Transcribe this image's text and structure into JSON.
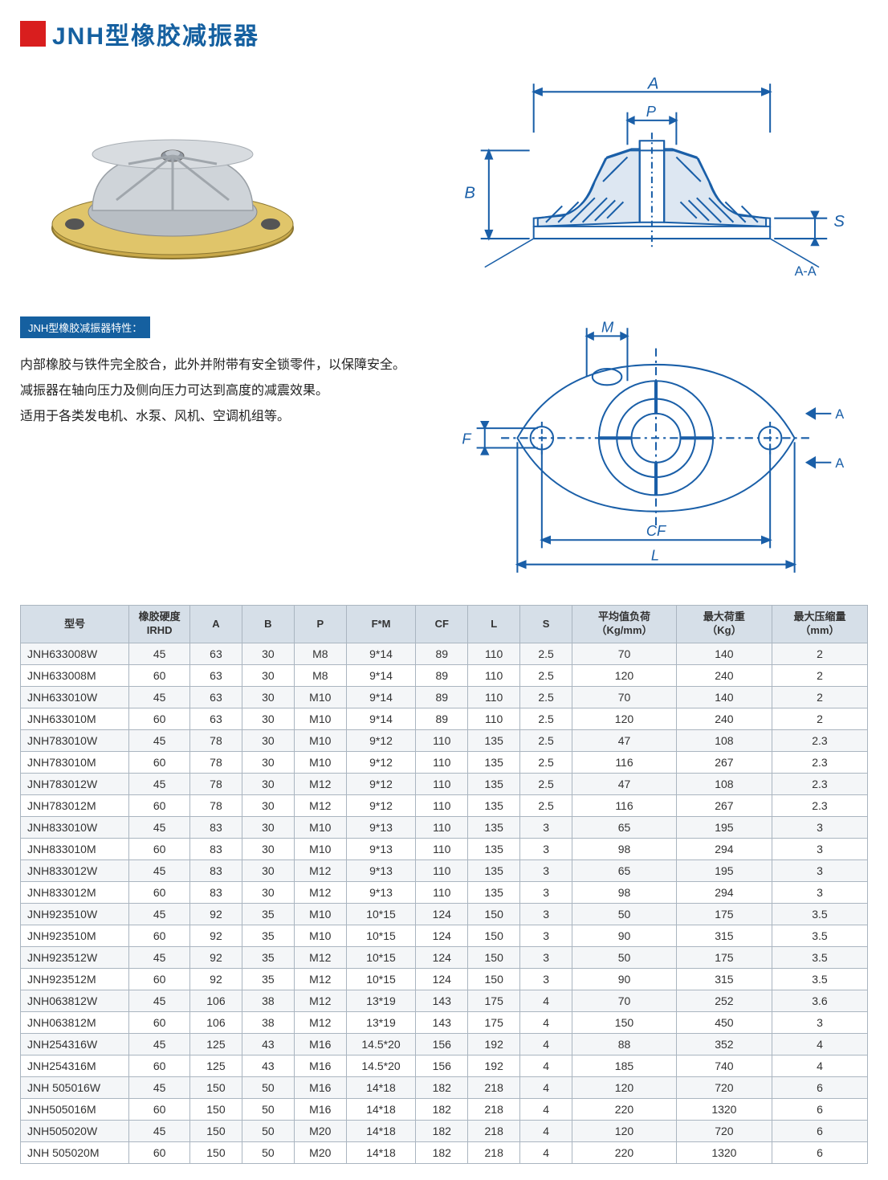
{
  "title": "JNH型橡胶减振器",
  "features_header": "JNH型橡胶减振器特性：",
  "features_lines": [
    "内部橡胶与铁件完全胶合，此外并附带有安全锁零件，以保障安全。",
    "减振器在轴向压力及侧向压力可达到高度的减震效果。",
    "适用于各类发电机、水泵、风机、空调机组等。"
  ],
  "diagram_labels": {
    "A": "A",
    "B": "B",
    "P": "P",
    "S": "S",
    "AA": "A-A",
    "M": "M",
    "F": "F",
    "CF": "CF",
    "L": "L"
  },
  "table": {
    "columns": [
      "型号",
      "橡胶硬度\nIRHD",
      "A",
      "B",
      "P",
      "F*M",
      "CF",
      "L",
      "S",
      "平均值负荷\n（Kg/mm）",
      "最大荷重\n（Kg）",
      "最大压缩量\n（mm）"
    ],
    "column_widths_pct": [
      12.5,
      7,
      6,
      6,
      6,
      8,
      6,
      6,
      6,
      12,
      11,
      11
    ],
    "header_bg": "#d6dfe8",
    "border_color": "#aab5c0",
    "row_bg_odd": "#f4f6f8",
    "row_bg_even": "#ffffff",
    "font_size": 14,
    "header_font_size": 13,
    "rows": [
      [
        "JNH633008W",
        "45",
        "63",
        "30",
        "M8",
        "9*14",
        "89",
        "110",
        "2.5",
        "70",
        "140",
        "2"
      ],
      [
        "JNH633008M",
        "60",
        "63",
        "30",
        "M8",
        "9*14",
        "89",
        "110",
        "2.5",
        "120",
        "240",
        "2"
      ],
      [
        "JNH633010W",
        "45",
        "63",
        "30",
        "M10",
        "9*14",
        "89",
        "110",
        "2.5",
        "70",
        "140",
        "2"
      ],
      [
        "JNH633010M",
        "60",
        "63",
        "30",
        "M10",
        "9*14",
        "89",
        "110",
        "2.5",
        "120",
        "240",
        "2"
      ],
      [
        "JNH783010W",
        "45",
        "78",
        "30",
        "M10",
        "9*12",
        "110",
        "135",
        "2.5",
        "47",
        "108",
        "2.3"
      ],
      [
        "JNH783010M",
        "60",
        "78",
        "30",
        "M10",
        "9*12",
        "110",
        "135",
        "2.5",
        "116",
        "267",
        "2.3"
      ],
      [
        "JNH783012W",
        "45",
        "78",
        "30",
        "M12",
        "9*12",
        "110",
        "135",
        "2.5",
        "47",
        "108",
        "2.3"
      ],
      [
        "JNH783012M",
        "60",
        "78",
        "30",
        "M12",
        "9*12",
        "110",
        "135",
        "2.5",
        "116",
        "267",
        "2.3"
      ],
      [
        "JNH833010W",
        "45",
        "83",
        "30",
        "M10",
        "9*13",
        "110",
        "135",
        "3",
        "65",
        "195",
        "3"
      ],
      [
        "JNH833010M",
        "60",
        "83",
        "30",
        "M10",
        "9*13",
        "110",
        "135",
        "3",
        "98",
        "294",
        "3"
      ],
      [
        "JNH833012W",
        "45",
        "83",
        "30",
        "M12",
        "9*13",
        "110",
        "135",
        "3",
        "65",
        "195",
        "3"
      ],
      [
        "JNH833012M",
        "60",
        "83",
        "30",
        "M12",
        "9*13",
        "110",
        "135",
        "3",
        "98",
        "294",
        "3"
      ],
      [
        "JNH923510W",
        "45",
        "92",
        "35",
        "M10",
        "10*15",
        "124",
        "150",
        "3",
        "50",
        "175",
        "3.5"
      ],
      [
        "JNH923510M",
        "60",
        "92",
        "35",
        "M10",
        "10*15",
        "124",
        "150",
        "3",
        "90",
        "315",
        "3.5"
      ],
      [
        "JNH923512W",
        "45",
        "92",
        "35",
        "M12",
        "10*15",
        "124",
        "150",
        "3",
        "50",
        "175",
        "3.5"
      ],
      [
        "JNH923512M",
        "60",
        "92",
        "35",
        "M12",
        "10*15",
        "124",
        "150",
        "3",
        "90",
        "315",
        "3.5"
      ],
      [
        "JNH063812W",
        "45",
        "106",
        "38",
        "M12",
        "13*19",
        "143",
        "175",
        "4",
        "70",
        "252",
        "3.6"
      ],
      [
        "JNH063812M",
        "60",
        "106",
        "38",
        "M12",
        "13*19",
        "143",
        "175",
        "4",
        "150",
        "450",
        "3"
      ],
      [
        "JNH254316W",
        "45",
        "125",
        "43",
        "M16",
        "14.5*20",
        "156",
        "192",
        "4",
        "88",
        "352",
        "4"
      ],
      [
        "JNH254316M",
        "60",
        "125",
        "43",
        "M16",
        "14.5*20",
        "156",
        "192",
        "4",
        "185",
        "740",
        "4"
      ],
      [
        "JNH 505016W",
        "45",
        "150",
        "50",
        "M16",
        "14*18",
        "182",
        "218",
        "4",
        "120",
        "720",
        "6"
      ],
      [
        "JNH505016M",
        "60",
        "150",
        "50",
        "M16",
        "14*18",
        "182",
        "218",
        "4",
        "220",
        "1320",
        "6"
      ],
      [
        "JNH505020W",
        "45",
        "150",
        "50",
        "M20",
        "14*18",
        "182",
        "218",
        "4",
        "120",
        "720",
        "6"
      ],
      [
        "JNH 505020M",
        "60",
        "150",
        "50",
        "M20",
        "14*18",
        "182",
        "218",
        "4",
        "220",
        "1320",
        "6"
      ]
    ]
  },
  "colors": {
    "accent_red": "#d91e1e",
    "title_blue": "#1560a0",
    "drawing_blue": "#1a5fa8",
    "text": "#222222"
  }
}
